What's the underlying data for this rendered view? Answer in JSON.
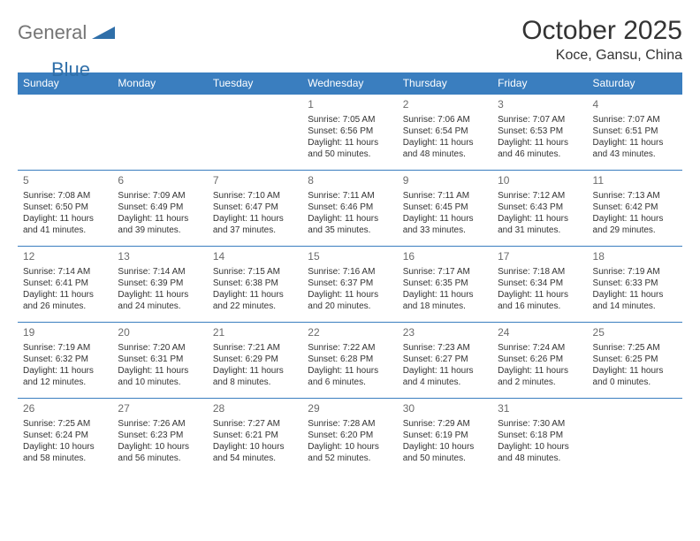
{
  "logo": {
    "general": "General",
    "blue": "Blue"
  },
  "title": "October 2025",
  "subtitle": "Koce, Gansu, China",
  "colors": {
    "header_bg": "#3a7ebf",
    "header_text": "#ffffff",
    "border": "#3a7ebf",
    "logo_gray": "#757575",
    "logo_blue": "#2f6fa9",
    "text": "#333333",
    "daynum": "#6b6b6b",
    "background": "#ffffff"
  },
  "weekdays": [
    "Sunday",
    "Monday",
    "Tuesday",
    "Wednesday",
    "Thursday",
    "Friday",
    "Saturday"
  ],
  "weeks": [
    [
      null,
      null,
      null,
      {
        "n": "1",
        "sr": "7:05 AM",
        "ss": "6:56 PM",
        "dl": "11 hours and 50 minutes."
      },
      {
        "n": "2",
        "sr": "7:06 AM",
        "ss": "6:54 PM",
        "dl": "11 hours and 48 minutes."
      },
      {
        "n": "3",
        "sr": "7:07 AM",
        "ss": "6:53 PM",
        "dl": "11 hours and 46 minutes."
      },
      {
        "n": "4",
        "sr": "7:07 AM",
        "ss": "6:51 PM",
        "dl": "11 hours and 43 minutes."
      }
    ],
    [
      {
        "n": "5",
        "sr": "7:08 AM",
        "ss": "6:50 PM",
        "dl": "11 hours and 41 minutes."
      },
      {
        "n": "6",
        "sr": "7:09 AM",
        "ss": "6:49 PM",
        "dl": "11 hours and 39 minutes."
      },
      {
        "n": "7",
        "sr": "7:10 AM",
        "ss": "6:47 PM",
        "dl": "11 hours and 37 minutes."
      },
      {
        "n": "8",
        "sr": "7:11 AM",
        "ss": "6:46 PM",
        "dl": "11 hours and 35 minutes."
      },
      {
        "n": "9",
        "sr": "7:11 AM",
        "ss": "6:45 PM",
        "dl": "11 hours and 33 minutes."
      },
      {
        "n": "10",
        "sr": "7:12 AM",
        "ss": "6:43 PM",
        "dl": "11 hours and 31 minutes."
      },
      {
        "n": "11",
        "sr": "7:13 AM",
        "ss": "6:42 PM",
        "dl": "11 hours and 29 minutes."
      }
    ],
    [
      {
        "n": "12",
        "sr": "7:14 AM",
        "ss": "6:41 PM",
        "dl": "11 hours and 26 minutes."
      },
      {
        "n": "13",
        "sr": "7:14 AM",
        "ss": "6:39 PM",
        "dl": "11 hours and 24 minutes."
      },
      {
        "n": "14",
        "sr": "7:15 AM",
        "ss": "6:38 PM",
        "dl": "11 hours and 22 minutes."
      },
      {
        "n": "15",
        "sr": "7:16 AM",
        "ss": "6:37 PM",
        "dl": "11 hours and 20 minutes."
      },
      {
        "n": "16",
        "sr": "7:17 AM",
        "ss": "6:35 PM",
        "dl": "11 hours and 18 minutes."
      },
      {
        "n": "17",
        "sr": "7:18 AM",
        "ss": "6:34 PM",
        "dl": "11 hours and 16 minutes."
      },
      {
        "n": "18",
        "sr": "7:19 AM",
        "ss": "6:33 PM",
        "dl": "11 hours and 14 minutes."
      }
    ],
    [
      {
        "n": "19",
        "sr": "7:19 AM",
        "ss": "6:32 PM",
        "dl": "11 hours and 12 minutes."
      },
      {
        "n": "20",
        "sr": "7:20 AM",
        "ss": "6:31 PM",
        "dl": "11 hours and 10 minutes."
      },
      {
        "n": "21",
        "sr": "7:21 AM",
        "ss": "6:29 PM",
        "dl": "11 hours and 8 minutes."
      },
      {
        "n": "22",
        "sr": "7:22 AM",
        "ss": "6:28 PM",
        "dl": "11 hours and 6 minutes."
      },
      {
        "n": "23",
        "sr": "7:23 AM",
        "ss": "6:27 PM",
        "dl": "11 hours and 4 minutes."
      },
      {
        "n": "24",
        "sr": "7:24 AM",
        "ss": "6:26 PM",
        "dl": "11 hours and 2 minutes."
      },
      {
        "n": "25",
        "sr": "7:25 AM",
        "ss": "6:25 PM",
        "dl": "11 hours and 0 minutes."
      }
    ],
    [
      {
        "n": "26",
        "sr": "7:25 AM",
        "ss": "6:24 PM",
        "dl": "10 hours and 58 minutes."
      },
      {
        "n": "27",
        "sr": "7:26 AM",
        "ss": "6:23 PM",
        "dl": "10 hours and 56 minutes."
      },
      {
        "n": "28",
        "sr": "7:27 AM",
        "ss": "6:21 PM",
        "dl": "10 hours and 54 minutes."
      },
      {
        "n": "29",
        "sr": "7:28 AM",
        "ss": "6:20 PM",
        "dl": "10 hours and 52 minutes."
      },
      {
        "n": "30",
        "sr": "7:29 AM",
        "ss": "6:19 PM",
        "dl": "10 hours and 50 minutes."
      },
      {
        "n": "31",
        "sr": "7:30 AM",
        "ss": "6:18 PM",
        "dl": "10 hours and 48 minutes."
      },
      null
    ]
  ],
  "labels": {
    "sunrise": "Sunrise:",
    "sunset": "Sunset:",
    "daylight": "Daylight:"
  }
}
